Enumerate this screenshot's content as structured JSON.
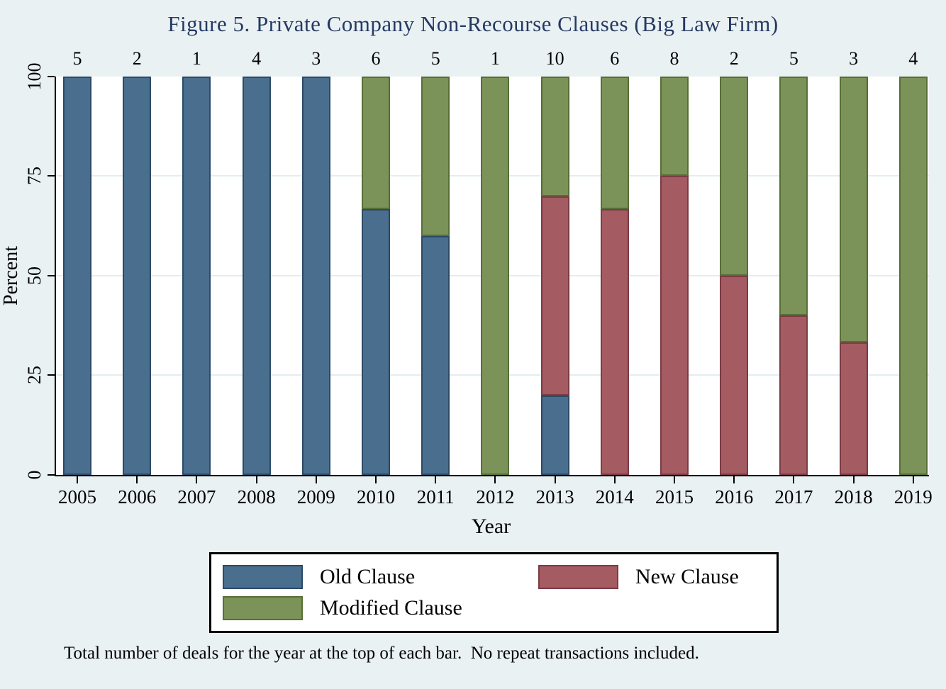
{
  "colors": {
    "page_background": "#eaf1f3",
    "plot_background": "#ffffff",
    "gridline": "#e4edf0",
    "axis": "#000000",
    "title_text": "#253a63",
    "old_clause_fill": "#4a6e8e",
    "old_clause_border": "#2c4a66",
    "new_clause_fill": "#a55b62",
    "new_clause_border": "#7b3b44",
    "modified_clause_fill": "#7b9259",
    "modified_clause_border": "#566f36"
  },
  "chart_data": {
    "type": "bar",
    "stacked": true,
    "title": "Figure 5. Private Company Non-Recourse Clauses (Big Law Firm)",
    "xlabel": "Year",
    "ylabel": "Percent",
    "ylim": [
      0,
      100
    ],
    "yticks": [
      0,
      25,
      50,
      75,
      100
    ],
    "gridlines_at": [
      25,
      50,
      75
    ],
    "grid": true,
    "categories": [
      "2005",
      "2006",
      "2007",
      "2008",
      "2009",
      "2010",
      "2011",
      "2012",
      "2013",
      "2014",
      "2015",
      "2016",
      "2017",
      "2018",
      "2019"
    ],
    "deal_counts": [
      5,
      2,
      1,
      4,
      3,
      6,
      5,
      1,
      10,
      6,
      8,
      2,
      5,
      3,
      4
    ],
    "series": [
      {
        "name": "Old Clause",
        "color": "#4a6e8e",
        "border_color": "#2c4a66",
        "values": [
          100,
          100,
          100,
          100,
          100,
          66.7,
          60,
          0,
          20,
          0,
          0,
          0,
          0,
          0,
          0
        ]
      },
      {
        "name": "New Clause",
        "color": "#a55b62",
        "border_color": "#7b3b44",
        "values": [
          0,
          0,
          0,
          0,
          0,
          0,
          0,
          0,
          50,
          66.7,
          75,
          50,
          40,
          33.3,
          0
        ]
      },
      {
        "name": "Modified Clause",
        "color": "#7b9259",
        "border_color": "#566f36",
        "values": [
          0,
          0,
          0,
          0,
          0,
          33.3,
          40,
          100,
          30,
          33.3,
          25,
          50,
          60,
          66.7,
          100
        ]
      }
    ],
    "legend": {
      "position": "bottom",
      "entries": [
        "Old Clause",
        "New Clause",
        "Modified Clause"
      ]
    },
    "note": "Total number of deals for the year at the top of each bar.  No repeat transactions included."
  }
}
